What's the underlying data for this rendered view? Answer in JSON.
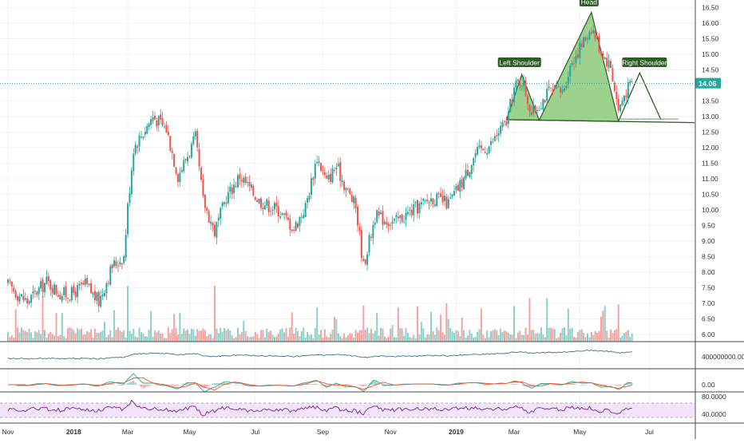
{
  "chart_data": {
    "type": "candlestick",
    "title": "",
    "xlabel": "",
    "ylabel": "",
    "ylim": [
      5.65,
      16.6
    ],
    "x_ticks": [
      "Nov",
      "2018",
      "Mar",
      "May",
      "Jul",
      "Sep",
      "Nov",
      "2019",
      "Mar",
      "May",
      "Jul"
    ],
    "y_ticks": [
      "6.00",
      "6.50",
      "7.00",
      "7.50",
      "8.00",
      "8.50",
      "9.00",
      "9.50",
      "10.00",
      "10.50",
      "11.00",
      "11.50",
      "12.00",
      "12.50",
      "13.00",
      "13.50",
      "14.00",
      "14.50",
      "15.00",
      "15.50",
      "16.00",
      "16.50"
    ],
    "current_price": 14.06,
    "current_price_label": "14.06",
    "price_path": [
      {
        "t": 0,
        "p": 7.6
      },
      {
        "t": 5,
        "p": 7.3
      },
      {
        "t": 10,
        "p": 7.05
      },
      {
        "t": 20,
        "p": 7.7
      },
      {
        "t": 27,
        "p": 7.3
      },
      {
        "t": 33,
        "p": 7.3
      },
      {
        "t": 40,
        "p": 7.6
      },
      {
        "t": 47,
        "p": 7.05
      },
      {
        "t": 54,
        "p": 8.2
      },
      {
        "t": 60,
        "p": 8.5
      },
      {
        "t": 62,
        "p": 10.1
      },
      {
        "t": 65,
        "p": 12.0
      },
      {
        "t": 75,
        "p": 13.0
      },
      {
        "t": 82,
        "p": 12.6
      },
      {
        "t": 88,
        "p": 11.1
      },
      {
        "t": 97,
        "p": 12.3
      },
      {
        "t": 101,
        "p": 10.3
      },
      {
        "t": 107,
        "p": 9.3
      },
      {
        "t": 113,
        "p": 10.4
      },
      {
        "t": 120,
        "p": 11.1
      },
      {
        "t": 130,
        "p": 10.3
      },
      {
        "t": 140,
        "p": 10.0
      },
      {
        "t": 148,
        "p": 9.4
      },
      {
        "t": 154,
        "p": 10.1
      },
      {
        "t": 160,
        "p": 11.7
      },
      {
        "t": 165,
        "p": 10.9
      },
      {
        "t": 170,
        "p": 11.4
      },
      {
        "t": 175,
        "p": 10.7
      },
      {
        "t": 180,
        "p": 10.1
      },
      {
        "t": 184,
        "p": 8.2
      },
      {
        "t": 190,
        "p": 9.8
      },
      {
        "t": 200,
        "p": 9.6
      },
      {
        "t": 210,
        "p": 10.0
      },
      {
        "t": 220,
        "p": 10.4
      },
      {
        "t": 228,
        "p": 10.2
      },
      {
        "t": 235,
        "p": 10.9
      },
      {
        "t": 242,
        "p": 11.8
      },
      {
        "t": 250,
        "p": 12.1
      },
      {
        "t": 255,
        "p": 12.6
      },
      {
        "t": 258,
        "p": 12.8
      },
      {
        "t": 262,
        "p": 13.9
      },
      {
        "t": 266,
        "p": 14.2
      },
      {
        "t": 271,
        "p": 13.1
      },
      {
        "t": 275,
        "p": 13.4
      },
      {
        "t": 280,
        "p": 13.8
      },
      {
        "t": 287,
        "p": 13.8
      },
      {
        "t": 292,
        "p": 14.8
      },
      {
        "t": 298,
        "p": 15.4
      },
      {
        "t": 302,
        "p": 15.9
      },
      {
        "t": 307,
        "p": 15.1
      },
      {
        "t": 312,
        "p": 14.6
      },
      {
        "t": 316,
        "p": 13.2
      },
      {
        "t": 319,
        "p": 13.7
      },
      {
        "t": 323,
        "p": 14.1
      }
    ],
    "volume_ticks": [
      "400000000.0000"
    ],
    "macd_ticks": [
      "0.00"
    ],
    "rsi_ticks": [
      "80.0000",
      "40.0000"
    ],
    "annotations": [
      {
        "label": "Left Shoulder"
      },
      {
        "label": "Head"
      },
      {
        "label": "Right Shoulder"
      }
    ],
    "pattern": {
      "name": "head-and-shoulders",
      "left_shoulder": {
        "date_index": 266,
        "price": 14.35
      },
      "head": {
        "date_index": 302,
        "price": 16.35
      },
      "right_shoulder": {
        "date_index": 327,
        "price": 14.4
      },
      "neckline": [
        {
          "date_index": 258,
          "price": 12.9
        },
        {
          "date_index": 360,
          "price": 12.8
        }
      ],
      "projection": [
        {
          "date_index": 316,
          "price": 12.85
        },
        {
          "date_index": 327,
          "price": 14.4
        },
        {
          "date_index": 338,
          "price": 12.9
        }
      ]
    },
    "colors": {
      "up": "#26a69a",
      "down": "#ef5350",
      "volume_up": "#8fd0c8",
      "volume_down": "#f4a3a1",
      "pattern_fill": "#8cc97a",
      "pattern_stroke": "#2e5d24",
      "price_line": "#26a69a",
      "signal_line": "#f4511e",
      "obv_line": "#3d6f8c",
      "rsi_line": "#7b1fa2",
      "rsi_band": "#f1e4fb"
    }
  }
}
